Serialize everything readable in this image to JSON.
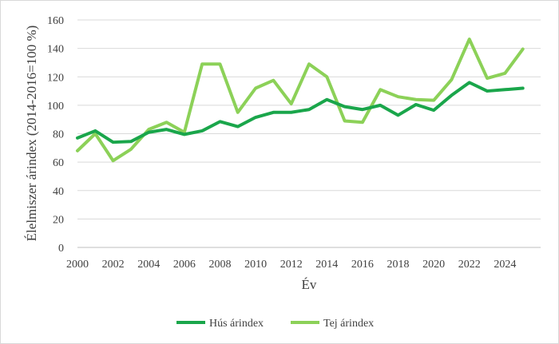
{
  "chart_data": {
    "type": "line",
    "title": "",
    "xlabel": "Év",
    "ylabel": "Élelmiszer árindex (2014-2016=100 %)",
    "x": [
      2000,
      2001,
      2002,
      2003,
      2004,
      2005,
      2006,
      2007,
      2008,
      2009,
      2010,
      2011,
      2012,
      2013,
      2014,
      2015,
      2016,
      2017,
      2018,
      2019,
      2020,
      2021,
      2022,
      2023,
      2024,
      2025
    ],
    "xlim": [
      2000,
      2026
    ],
    "ylim": [
      0,
      160
    ],
    "xticks": [
      "2000",
      "2002",
      "2004",
      "2006",
      "2008",
      "2010",
      "2012",
      "2014",
      "2016",
      "2018",
      "2020",
      "2022",
      "2024"
    ],
    "yticks": [
      "0",
      "20",
      "40",
      "60",
      "80",
      "100",
      "120",
      "140",
      "160"
    ],
    "grid": true,
    "legend_position": "bottom",
    "series": [
      {
        "name": "Hús árindex",
        "color": "#1aa64b",
        "values": [
          77,
          82,
          74,
          74.5,
          81,
          83,
          79.5,
          82,
          88.5,
          85,
          91.5,
          95,
          95,
          97,
          104,
          99,
          97,
          100,
          93,
          100.5,
          96.5,
          107,
          116,
          110,
          111,
          112
        ]
      },
      {
        "name": "Tej árindex",
        "color": "#8cd158",
        "values": [
          68,
          80,
          61,
          69,
          83,
          88,
          81,
          129,
          129,
          95,
          112,
          117.5,
          101,
          129,
          120,
          89,
          88,
          111,
          106,
          104,
          103.5,
          118,
          146.5,
          119,
          122.5,
          139.5
        ]
      }
    ]
  }
}
